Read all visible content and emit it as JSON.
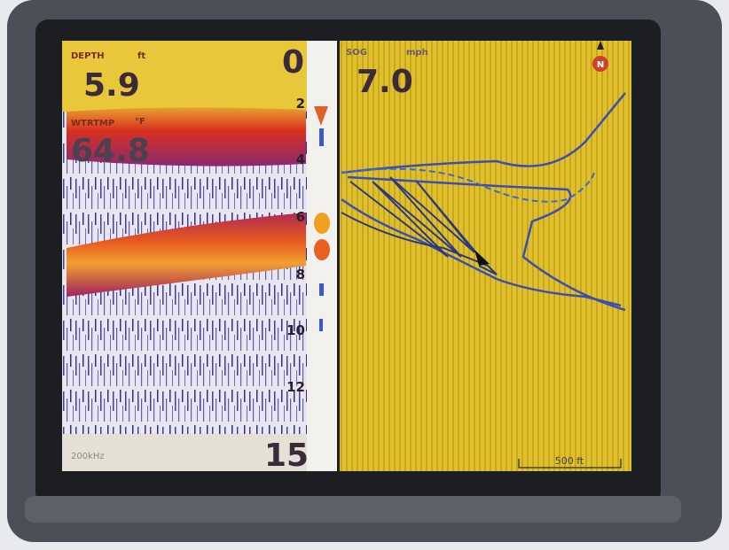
{
  "sonar": {
    "depth": {
      "label": "DEPTH",
      "unit": "ft",
      "value": "5.9"
    },
    "range_top": "0",
    "water_temp": {
      "label": "WTRTMP",
      "unit": "°F",
      "value": "64.8"
    },
    "scale_labels": [
      "2",
      "4",
      "6",
      "8",
      "10",
      "12"
    ],
    "range_bottom": "15",
    "frequency": "200kHz"
  },
  "chart": {
    "sog": {
      "label": "SOG",
      "unit": "mph",
      "value": "7.0"
    },
    "north": "N",
    "scale_bar": "500 ft"
  }
}
